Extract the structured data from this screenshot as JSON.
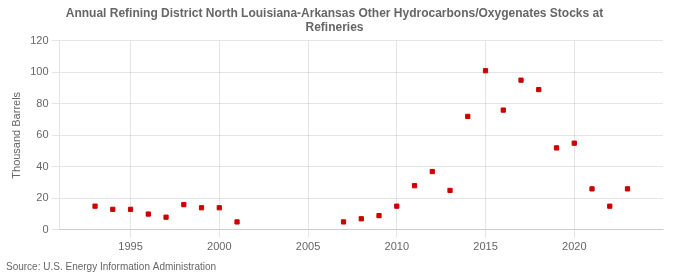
{
  "chart_data": {
    "type": "scatter",
    "title": "Annual Refining District North Louisiana-Arkansas Other Hydrocarbons/Oxygenates Stocks at\nRefineries",
    "ylabel": "Thousand Barrels",
    "annotations": [
      "Source: U.S. Energy Information Administration"
    ],
    "x": [
      1993,
      1994,
      1995,
      1996,
      1997,
      1998,
      1999,
      2000,
      2001,
      2007,
      2008,
      2009,
      2010,
      2011,
      2012,
      2013,
      2014,
      2015,
      2016,
      2017,
      2018,
      2019,
      2020,
      2021,
      2022,
      2023
    ],
    "values": [
      15,
      13,
      13,
      10,
      8,
      16,
      14,
      14,
      5,
      5,
      7,
      9,
      15,
      28,
      37,
      25,
      72,
      101,
      76,
      95,
      89,
      52,
      55,
      26,
      15,
      26
    ],
    "color": "#cc0000",
    "marker": "square",
    "xlim": [
      1991,
      2025
    ],
    "xticks": [
      1995,
      2000,
      2005,
      2010,
      2015,
      2020
    ],
    "ylim": [
      0,
      120
    ],
    "yticks": [
      0,
      20,
      40,
      60,
      80,
      100,
      120
    ],
    "grid": true
  }
}
